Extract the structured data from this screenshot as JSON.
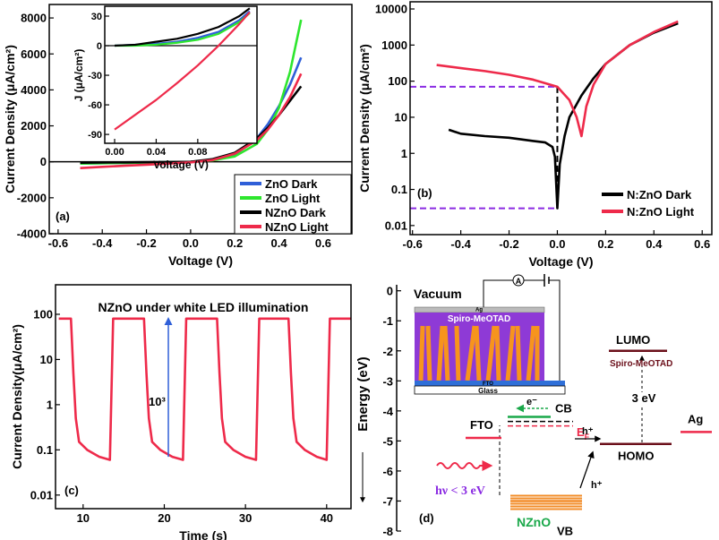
{
  "chart_data": [
    {
      "type": "line",
      "xlabel": "Voltage (V)",
      "ylabel": "Current Density (μA/cm²)",
      "annotation": "(a)",
      "xlim": [
        -0.64,
        0.73
      ],
      "ylim": [
        -4000,
        8750
      ],
      "xticks": [
        -0.6,
        -0.4,
        -0.2,
        {
          "value": 0,
          "label": "0.0"
        },
        0.2,
        0.4,
        0.6
      ],
      "yticks": [
        -4000,
        -2000,
        0,
        2000,
        4000,
        6000,
        8000
      ],
      "legend": "lower right",
      "legend_frame": true,
      "zero_line": true,
      "x": [
        -0.5,
        -0.4,
        -0.3,
        -0.2,
        -0.1,
        0,
        0.1,
        0.2,
        0.3,
        0.35,
        0.4,
        0.45,
        0.5
      ],
      "series": [
        {
          "name": "ZnO Dark",
          "color": "#2f5fd8",
          "values": [
            -100,
            -80,
            -60,
            -40,
            -20,
            0,
            100,
            400,
            1300,
            2100,
            3100,
            4300,
            5800
          ]
        },
        {
          "name": "ZnO Light",
          "color": "#2ee62e",
          "values": [
            -100,
            -80,
            -60,
            -40,
            -20,
            0,
            80,
            300,
            1000,
            1800,
            3000,
            5000,
            7900
          ]
        },
        {
          "name": "NZnO Dark",
          "color": "#000000",
          "values": [
            -50,
            -40,
            -30,
            -20,
            -10,
            0,
            150,
            500,
            1300,
            1900,
            2600,
            3400,
            4200
          ]
        },
        {
          "name": "NZnO Light",
          "color": "#ee2a4a",
          "values": [
            -350,
            -280,
            -220,
            -160,
            -100,
            -30,
            100,
            450,
            1200,
            1800,
            2600,
            3600,
            4900
          ]
        }
      ],
      "inset": {
        "xlabel": "Voltage (V)",
        "ylabel": "J (μA/cm²)",
        "xlim": [
          -0.0095,
          0.137
        ],
        "ylim": [
          -99,
          40
        ],
        "xticks": [
          {
            "value": 0,
            "label": "0.00"
          },
          0.04,
          0.08
        ],
        "yticks": [
          30,
          0,
          -30,
          -60,
          -90
        ],
        "zero_line": true,
        "x": [
          0,
          0.02,
          0.04,
          0.06,
          0.08,
          0.1,
          0.12,
          0.13
        ],
        "series": [
          {
            "color": "#2f5fd8",
            "values": [
              0,
              1,
              2,
              4,
              8,
              14,
              26,
              35
            ]
          },
          {
            "color": "#2ee62e",
            "values": [
              0,
              0,
              1,
              3,
              6,
              12,
              24,
              33
            ]
          },
          {
            "color": "#000000",
            "values": [
              0,
              1,
              4,
              7,
              12,
              19,
              30,
              38
            ]
          },
          {
            "color": "#ee2a4a",
            "values": [
              -85,
              -70,
              -55,
              -38,
              -20,
              0,
              22,
              34
            ]
          }
        ]
      }
    },
    {
      "type": "line",
      "log_y": true,
      "xlabel": "Voltage (V)",
      "ylabel": "Current Density (μA/cm²)",
      "annotation": "(b)",
      "xlim": [
        -0.61,
        0.64
      ],
      "ylim": [
        0.0056,
        15800
      ],
      "xticks": [
        -0.6,
        -0.4,
        -0.2,
        {
          "value": 0,
          "label": "0.0"
        },
        0.2,
        0.4,
        0.6
      ],
      "yticks": [
        0.01,
        0.1,
        1,
        10,
        100,
        1000,
        10000
      ],
      "legend": "lower right",
      "reference": {
        "x": 0,
        "y": [
          70,
          0.03
        ],
        "color": "#8a2be2"
      },
      "series": [
        {
          "name": "N:ZnO Dark",
          "color": "#000000",
          "x": [
            -0.45,
            -0.4,
            -0.3,
            -0.2,
            -0.1,
            -0.05,
            -0.02,
            -0.01,
            0,
            0.01,
            0.03,
            0.05,
            0.1,
            0.15,
            0.2,
            0.3,
            0.4,
            0.5
          ],
          "values": [
            4.5,
            3.5,
            3,
            2.7,
            2.2,
            2,
            1.5,
            0.8,
            0.03,
            0.5,
            3,
            10,
            40,
            120,
            300,
            1000,
            2200,
            4000
          ]
        },
        {
          "name": "N:ZnO Light",
          "color": "#ee2a4a",
          "x": [
            -0.5,
            -0.4,
            -0.3,
            -0.2,
            -0.1,
            0,
            0.05,
            0.08,
            0.1,
            0.12,
            0.15,
            0.2,
            0.3,
            0.4,
            0.5
          ],
          "values": [
            280,
            230,
            190,
            150,
            110,
            70,
            30,
            10,
            3,
            20,
            80,
            300,
            1000,
            2300,
            4500
          ]
        }
      ]
    },
    {
      "type": "line",
      "log_y": true,
      "title": "NZnO under white LED illumination",
      "xlabel": "Time (s)",
      "ylabel": "Current Density(μA/cm²)",
      "annotation": "(c)",
      "xlim": [
        6.6,
        43
      ],
      "ylim": [
        0.005,
        450
      ],
      "xticks": [
        10,
        20,
        30,
        40
      ],
      "yticks": [
        0.01,
        0.1,
        1,
        10,
        100
      ],
      "arrow": {
        "x": 20.5,
        "y": [
          0.07,
          80
        ],
        "label": "10³",
        "color": "#2f5fd8"
      },
      "series": [
        {
          "color": "#ee2a4a",
          "x": [
            7,
            8.5,
            8.8,
            9.1,
            9.5,
            10.5,
            12,
            13.3,
            13.7,
            17.5,
            17.8,
            18.1,
            18.5,
            19.5,
            21,
            22.3,
            22.7,
            26.5,
            26.8,
            27.1,
            27.5,
            28.5,
            30,
            31.3,
            31.7,
            35.3,
            35.6,
            35.9,
            36.3,
            37.3,
            38.8,
            40.0,
            40.4,
            43
          ],
          "values": [
            80,
            80,
            5,
            0.5,
            0.15,
            0.1,
            0.07,
            0.06,
            80,
            80,
            5,
            0.5,
            0.15,
            0.1,
            0.07,
            0.06,
            80,
            80,
            5,
            0.5,
            0.15,
            0.1,
            0.07,
            0.06,
            80,
            80,
            5,
            0.5,
            0.15,
            0.1,
            0.07,
            0.06,
            80,
            80
          ]
        }
      ]
    },
    {
      "type": "energy-diagram",
      "ylabel": "Energy (eV)",
      "annotation": "(d)",
      "ylim": [
        -8,
        0.2
      ],
      "yticks": [
        0,
        -1,
        -2,
        -3,
        -4,
        -5,
        -6,
        -7,
        -8
      ],
      "levels": [
        {
          "name": "FTO",
          "value": -4.9,
          "color": "#ee2a4a"
        },
        {
          "name": "CB",
          "value": -4.2,
          "color": "#1aa84a"
        },
        {
          "value": -4.35,
          "color": "#000000",
          "style": "dashed"
        },
        {
          "value": -4.5,
          "color": "#ee2a4a",
          "style": "dashed"
        },
        {
          "name": "VB",
          "value": -7.0,
          "color": "#f28c28",
          "sublabel": "NZnO"
        },
        {
          "name": "LUMO",
          "value": -2.0,
          "color": "#6b0f1a",
          "sublabel": "Spiro-MeOTAD"
        },
        {
          "name": "HOMO",
          "value": -5.1,
          "color": "#6b0f1a"
        },
        {
          "name": "Ag",
          "value": -4.7,
          "color": "#ee2a4a"
        }
      ],
      "texts": {
        "vacuum": "Vacuum",
        "electron": "e⁻",
        "fermi": "E",
        "fermi_sub": "F",
        "photon": "hν < 3 eV",
        "hole": "h⁺",
        "gap": "3 eV"
      },
      "device": {
        "meter": "A",
        "layers": [
          "Ag",
          "Spiro-MeOTAD",
          "FTO",
          "Glass"
        ]
      }
    }
  ]
}
